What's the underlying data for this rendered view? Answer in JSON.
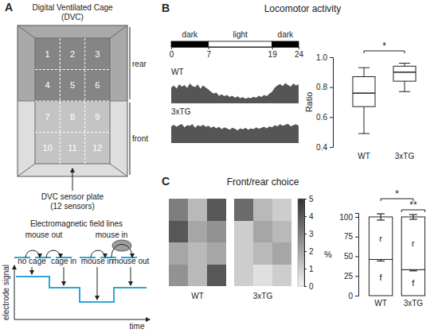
{
  "diagram": {
    "panel": "A",
    "title": "Digital Ventilated Cage",
    "subtitle": "(DVC)",
    "sensors": [
      "1",
      "2",
      "3",
      "4",
      "5",
      "6",
      "7",
      "8",
      "9",
      "10",
      "11",
      "12"
    ],
    "zones": [
      "rear",
      "front"
    ],
    "plate_label": [
      "DVC sensor plate",
      "(12 sensors)"
    ],
    "field_title": "Electromagnetic field lines",
    "field_states": [
      "mouse out",
      "mouse in"
    ],
    "signal_events": [
      "no cage",
      "cage in",
      "mouse in",
      "mouse out"
    ],
    "signal_ylabel": "electrode signal",
    "signal_xlabel": "time"
  },
  "chart_data": [
    {
      "type": "area",
      "panel": "B",
      "title": "Locomotor activity",
      "x": [
        0,
        0.5,
        1,
        1.5,
        2,
        2.5,
        3,
        3.5,
        4,
        4.5,
        5,
        5.5,
        6,
        6.5,
        7,
        7.5,
        8,
        8.5,
        9,
        9.5,
        10,
        10.5,
        11,
        11.5,
        12,
        12.5,
        13,
        13.5,
        14,
        14.5,
        15,
        15.5,
        16,
        16.5,
        17,
        17.5,
        18,
        18.5,
        19,
        19.5,
        20,
        20.5,
        21,
        21.5,
        22,
        22.5,
        23,
        23.5,
        24
      ],
      "xlim": [
        0,
        24
      ],
      "xticks": [
        0,
        7,
        19,
        24
      ],
      "ylim": [
        0,
        1
      ],
      "tick_labels": "x",
      "phases": [
        {
          "label": "dark",
          "start": 0,
          "end": 7,
          "color": "#000000"
        },
        {
          "label": "light",
          "start": 7,
          "end": 19,
          "color": "#ffffff"
        },
        {
          "label": "dark",
          "start": 19,
          "end": 24,
          "color": "#000000"
        }
      ],
      "series": [
        {
          "name": "WT",
          "color": "#555555",
          "values": [
            0.62,
            0.7,
            0.58,
            0.75,
            0.66,
            0.72,
            0.6,
            0.78,
            0.68,
            0.64,
            0.74,
            0.58,
            0.7,
            0.62,
            0.55,
            0.45,
            0.38,
            0.42,
            0.3,
            0.35,
            0.28,
            0.33,
            0.25,
            0.3,
            0.22,
            0.27,
            0.2,
            0.24,
            0.18,
            0.23,
            0.2,
            0.26,
            0.22,
            0.3,
            0.25,
            0.33,
            0.28,
            0.38,
            0.45,
            0.62,
            0.7,
            0.76,
            0.68,
            0.8,
            0.72,
            0.66,
            0.78,
            0.7,
            0.74
          ]
        },
        {
          "name": "3xTG",
          "color": "#555555",
          "values": [
            0.66,
            0.72,
            0.64,
            0.7,
            0.75,
            0.62,
            0.7,
            0.68,
            0.74,
            0.6,
            0.7,
            0.66,
            0.72,
            0.64,
            0.68,
            0.6,
            0.66,
            0.58,
            0.64,
            0.55,
            0.62,
            0.58,
            0.52,
            0.6,
            0.56,
            0.5,
            0.58,
            0.54,
            0.6,
            0.52,
            0.58,
            0.55,
            0.62,
            0.56,
            0.6,
            0.64,
            0.58,
            0.66,
            0.62,
            0.7,
            0.66,
            0.74,
            0.68,
            0.72,
            0.76,
            0.66,
            0.7,
            0.74,
            0.68
          ]
        }
      ]
    },
    {
      "type": "box",
      "ylabel": "Ratio",
      "categories": [
        "WT",
        "3xTG"
      ],
      "ylim": [
        0.4,
        1
      ],
      "yticks": [
        0.4,
        0.6,
        0.8,
        {
          "value": 1,
          "label": "1.0"
        }
      ],
      "min": [
        0.49,
        0.77
      ],
      "q1": [
        0.67,
        0.84
      ],
      "median": [
        0.76,
        0.9
      ],
      "q3": [
        0.87,
        0.94
      ],
      "max": [
        0.93,
        0.96
      ],
      "color": "#ffffff",
      "significance": [
        {
          "label": "*",
          "between": [
            "WT",
            "3xTG"
          ]
        }
      ]
    },
    {
      "type": "heatmap",
      "panel": "C",
      "title": "Front/rear choice",
      "categories": [
        "WT",
        "3xTG"
      ],
      "cells": [
        [
          [
            3.0,
            1.5,
            4.0
          ],
          [
            4.0,
            2.0,
            2.5
          ],
          [
            2.0,
            1.5,
            2.0
          ],
          [
            2.5,
            1.5,
            4.0
          ]
        ],
        [
          [
            3.5,
            1.5,
            1.0
          ],
          [
            1.0,
            2.0,
            1.5
          ],
          [
            1.0,
            1.5,
            2.0
          ],
          [
            1.0,
            0.5,
            1.0
          ]
        ]
      ],
      "color_range": [
        0,
        5
      ],
      "color_ticks": [
        0,
        1,
        2,
        3,
        4,
        5
      ]
    },
    {
      "type": "bar",
      "stacked": true,
      "ylabel": "%",
      "categories": [
        "WT",
        "3xTG"
      ],
      "ylim": [
        0,
        105
      ],
      "yticks": [
        0,
        25,
        50,
        75,
        100
      ],
      "series": [
        {
          "name": "f",
          "color": "#ffffff",
          "values": [
            46,
            33
          ],
          "errors": [
            2,
            1.5
          ]
        },
        {
          "name": "r",
          "color": "#ffffff",
          "values": [
            54,
            67
          ],
          "errors": [
            4,
            3
          ]
        }
      ],
      "significance": [
        {
          "label": "*",
          "between": [
            "WT",
            "3xTG"
          ]
        },
        {
          "label": "**",
          "between": [
            "3xTG"
          ]
        }
      ]
    }
  ]
}
